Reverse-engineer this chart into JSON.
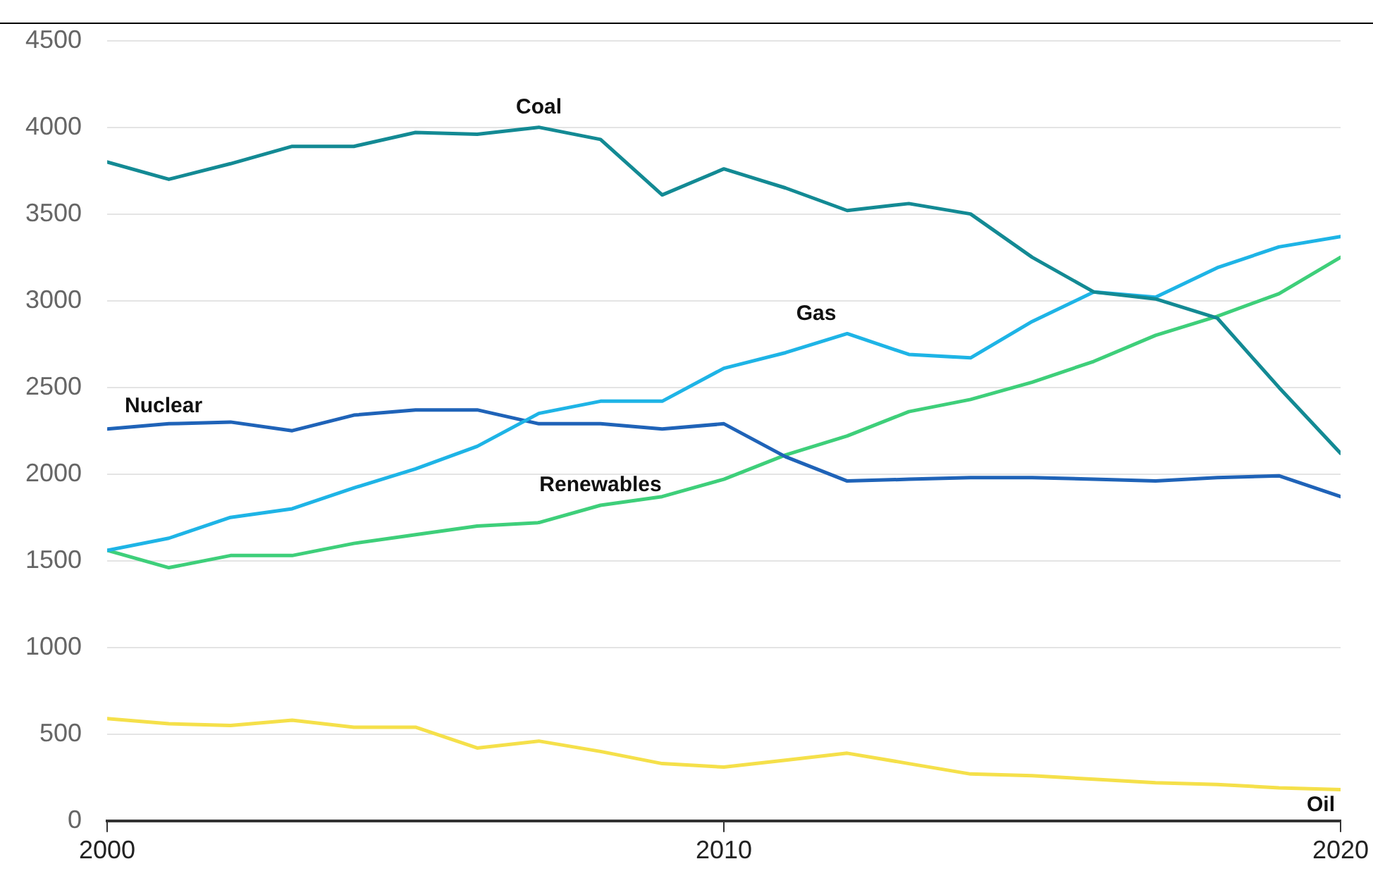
{
  "chart_data": {
    "type": "line",
    "x": [
      2000,
      2001,
      2002,
      2003,
      2004,
      2005,
      2006,
      2007,
      2008,
      2009,
      2010,
      2011,
      2012,
      2013,
      2014,
      2015,
      2016,
      2017,
      2018,
      2019,
      2020
    ],
    "series": [
      {
        "name": "Coal",
        "color": "#138a94",
        "values": [
          3800,
          3700,
          3790,
          3890,
          3890,
          3970,
          3960,
          4000,
          3930,
          3610,
          3760,
          3650,
          3520,
          3560,
          3500,
          3250,
          3050,
          3010,
          2900,
          2500,
          2120
        ]
      },
      {
        "name": "Gas",
        "color": "#1eb4e6",
        "values": [
          1560,
          1630,
          1750,
          1800,
          1920,
          2030,
          2160,
          2350,
          2420,
          2420,
          2610,
          2700,
          2810,
          2690,
          2670,
          2880,
          3050,
          3020,
          3190,
          3310,
          3370
        ]
      },
      {
        "name": "Nuclear",
        "color": "#1f63b8",
        "values": [
          2260,
          2290,
          2300,
          2250,
          2340,
          2370,
          2370,
          2290,
          2290,
          2260,
          2290,
          2100,
          1960,
          1970,
          1980,
          1980,
          1970,
          1960,
          1980,
          1990,
          1870
        ]
      },
      {
        "name": "Renewables",
        "color": "#3ecf7a",
        "values": [
          1560,
          1460,
          1530,
          1530,
          1600,
          1650,
          1700,
          1720,
          1820,
          1870,
          1970,
          2110,
          2220,
          2360,
          2430,
          2530,
          2650,
          2800,
          2910,
          3040,
          3250
        ]
      },
      {
        "name": "Oil",
        "color": "#f5e04a",
        "values": [
          590,
          560,
          550,
          580,
          540,
          540,
          420,
          460,
          400,
          330,
          310,
          350,
          390,
          330,
          270,
          260,
          240,
          220,
          210,
          190,
          180
        ]
      }
    ],
    "xlim": [
      2000,
      2020
    ],
    "xticks": [
      2000,
      2010,
      2020
    ],
    "ylim": [
      0,
      4500
    ],
    "yticks": [
      0,
      500,
      1000,
      1500,
      2000,
      2500,
      3000,
      3500,
      4000,
      4500
    ],
    "grid": "y",
    "legend": false,
    "marker": "none",
    "line_style": "solid"
  }
}
